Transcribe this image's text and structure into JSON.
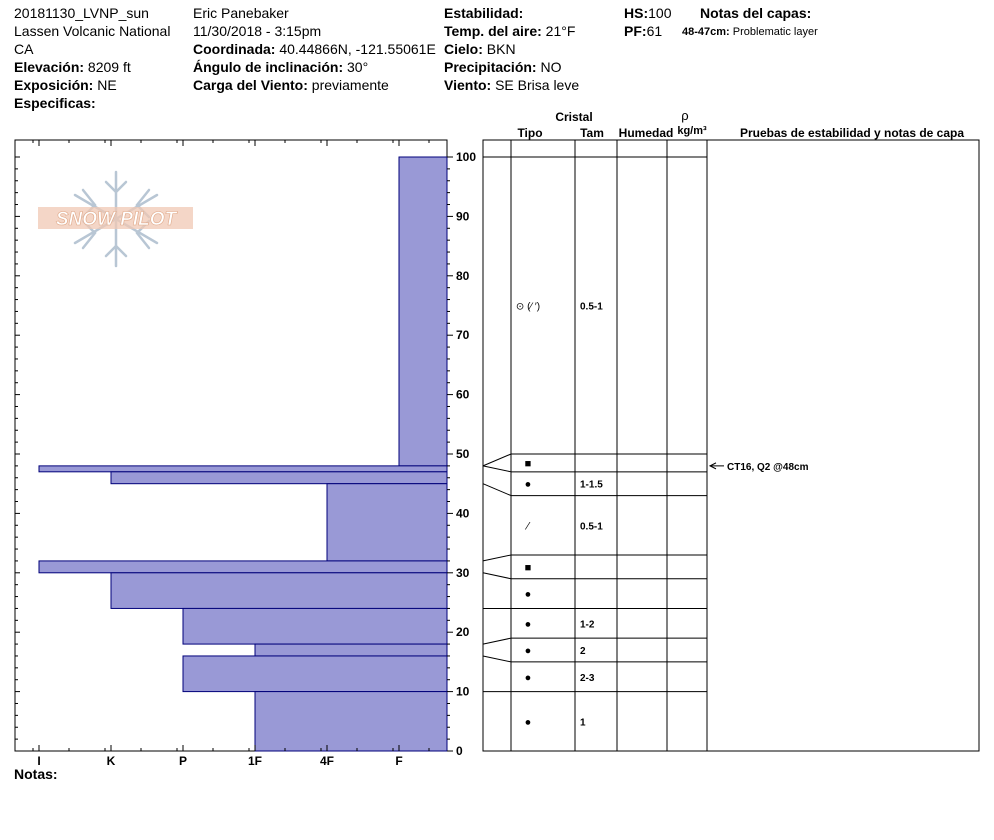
{
  "header": {
    "col1": {
      "line1": "20181130_LVNP_sun",
      "line2": "Lassen Volcanic National",
      "line3": "CA",
      "elev_label": "Elevación:",
      "elev_value": "8209 ft",
      "aspect_label": "Exposición:",
      "aspect_value": "NE",
      "specifics_label": "Especificas:"
    },
    "col2": {
      "observer": "Eric Panebaker",
      "datetime": "11/30/2018 - 3:15pm",
      "coord_label": "Coordinada:",
      "coord_value": "40.44866N, -121.55061E",
      "slope_label": "Ángulo de inclinación:",
      "slope_value": "30°",
      "wind_load_label": "Carga del Viento:",
      "wind_load_value": "previamente"
    },
    "col3": {
      "stability_label": "Estabilidad:",
      "air_temp_label": "Temp. del aire:",
      "air_temp_value": "21°F",
      "sky_label": "Cielo:",
      "sky_value": "BKN",
      "precip_label": "Precipitación:",
      "precip_value": "NO",
      "wind_label": "Viento:",
      "wind_value": "SE  Brisa leve"
    },
    "col4": {
      "hs_label": "HS:",
      "hs_value": "100",
      "pf_label": "PF:",
      "pf_value": "61",
      "layer_notes_label": "Notas del capas:",
      "layer_note_range": "48-47cm:",
      "layer_note_text": "Problematic layer"
    }
  },
  "logo": {
    "text": "SNOW PILOT"
  },
  "table_headers": {
    "crystal": "Cristal",
    "type": "Tipo",
    "size": "Tam",
    "moisture": "Humedad",
    "density_symbol": "ρ",
    "density_unit": "kg/m³",
    "tests": "Pruebas de estabilidad y notas de capa"
  },
  "footer": {
    "notes_label": "Notas:"
  },
  "colors": {
    "fill": "#9999d6",
    "stroke": "#00007a",
    "grid": "#000000"
  },
  "chart_data": {
    "type": "snow-profile",
    "hardness_scale": [
      "I",
      "K",
      "P",
      "1F",
      "4F",
      "F"
    ],
    "height_axis": {
      "ylim": [
        0,
        100
      ],
      "ticks": [
        0,
        10,
        20,
        30,
        40,
        50,
        60,
        70,
        80,
        90,
        100
      ]
    },
    "hardness_layers": [
      {
        "top": 100,
        "bottom": 48,
        "hardness": "F"
      },
      {
        "top": 48,
        "bottom": 47,
        "hardness": "I"
      },
      {
        "top": 47,
        "bottom": 45,
        "hardness": "K"
      },
      {
        "top": 45,
        "bottom": 32,
        "hardness": "4F"
      },
      {
        "top": 32,
        "bottom": 30,
        "hardness": "I"
      },
      {
        "top": 30,
        "bottom": 24,
        "hardness": "K"
      },
      {
        "top": 24,
        "bottom": 18,
        "hardness": "P"
      },
      {
        "top": 18,
        "bottom": 16,
        "hardness": "1F"
      },
      {
        "top": 16,
        "bottom": 10,
        "hardness": "P"
      },
      {
        "top": 10,
        "bottom": 0,
        "hardness": "1F"
      }
    ],
    "crystal_layers": [
      {
        "top": 100,
        "bottom": 50,
        "type": "⊙ (⁄ ′)",
        "size": "0.5-1"
      },
      {
        "top": 50,
        "bottom": 47,
        "type": "■",
        "size": ""
      },
      {
        "top": 47,
        "bottom": 43,
        "type": "●",
        "size": "1-1.5"
      },
      {
        "top": 43,
        "bottom": 33,
        "type": "⁄",
        "size": "0.5-1"
      },
      {
        "top": 33,
        "bottom": 29,
        "type": "■",
        "size": ""
      },
      {
        "top": 29,
        "bottom": 24,
        "type": "●",
        "size": ""
      },
      {
        "top": 24,
        "bottom": 19,
        "type": "●",
        "size": "1-2"
      },
      {
        "top": 19,
        "bottom": 15,
        "type": "●",
        "size": "2"
      },
      {
        "top": 15,
        "bottom": 10,
        "type": "●",
        "size": "2-3"
      },
      {
        "top": 10,
        "bottom": 0,
        "type": "●",
        "size": "1"
      }
    ],
    "stability_tests": [
      {
        "height": 48,
        "text": "CT16, Q2 @48cm"
      }
    ]
  }
}
